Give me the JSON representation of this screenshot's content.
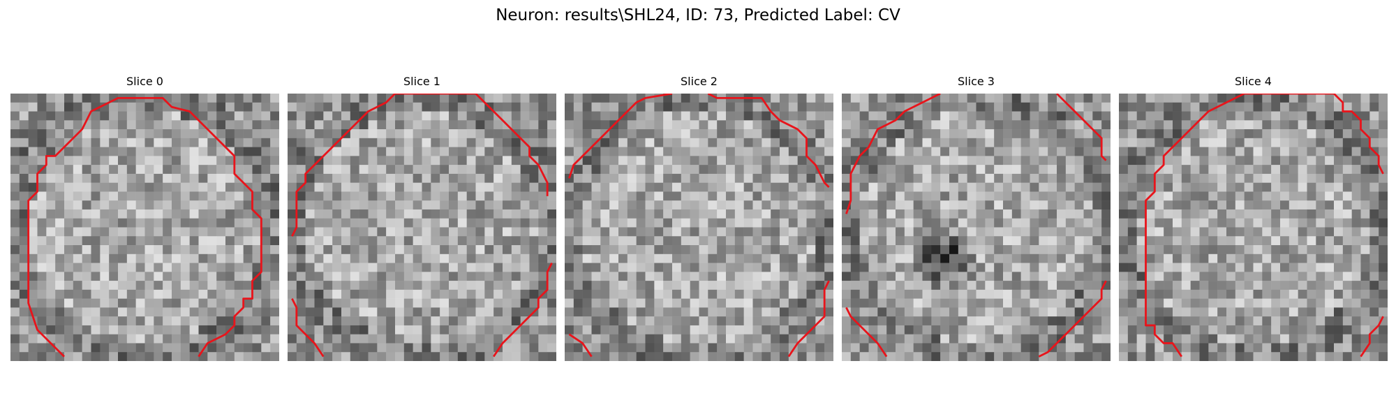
{
  "figure": {
    "title": "Neuron: results\\SHL24, ID: 73, Predicted Label: CV"
  },
  "panels": [
    {
      "title": "Slice 0",
      "colormap": "gray",
      "contour_color": "#e8141b",
      "seed": 11,
      "dark_spot": false
    },
    {
      "title": "Slice 1",
      "colormap": "gray",
      "contour_color": "#e8141b",
      "seed": 23,
      "dark_spot": false
    },
    {
      "title": "Slice 2",
      "colormap": "gray",
      "contour_color": "#e8141b",
      "seed": 37,
      "dark_spot": false
    },
    {
      "title": "Slice 3",
      "colormap": "gray",
      "contour_color": "#e8141b",
      "seed": 41,
      "dark_spot": true
    },
    {
      "title": "Slice 4",
      "colormap": "gray",
      "contour_color": "#e8141b",
      "seed": 59,
      "dark_spot": false
    }
  ]
}
